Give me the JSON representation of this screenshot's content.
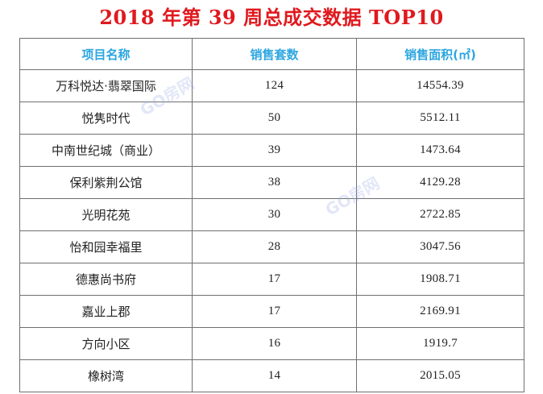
{
  "title": "2018 年第 39 周总成交数据 TOP10",
  "table": {
    "headers": [
      "项目名称",
      "销售套数",
      "销售面积(㎡)"
    ],
    "rows": [
      {
        "name": "万科悦达·翡翠国际",
        "units": "124",
        "area": "14554.39"
      },
      {
        "name": "悦隽时代",
        "units": "50",
        "area": "5512.11"
      },
      {
        "name": "中南世纪城（商业）",
        "units": "39",
        "area": "1473.64"
      },
      {
        "name": "保利紫荆公馆",
        "units": "38",
        "area": "4129.28"
      },
      {
        "name": "光明花苑",
        "units": "30",
        "area": "2722.85"
      },
      {
        "name": "怡和园幸福里",
        "units": "28",
        "area": "3047.56"
      },
      {
        "name": "德惠尚书府",
        "units": "17",
        "area": "1908.71"
      },
      {
        "name": "嘉业上郡",
        "units": "17",
        "area": "2169.91"
      },
      {
        "name": "方向小区",
        "units": "16",
        "area": "1919.7"
      },
      {
        "name": "橡树湾",
        "units": "14",
        "area": "2015.05"
      }
    ]
  },
  "watermark": "GO房网"
}
